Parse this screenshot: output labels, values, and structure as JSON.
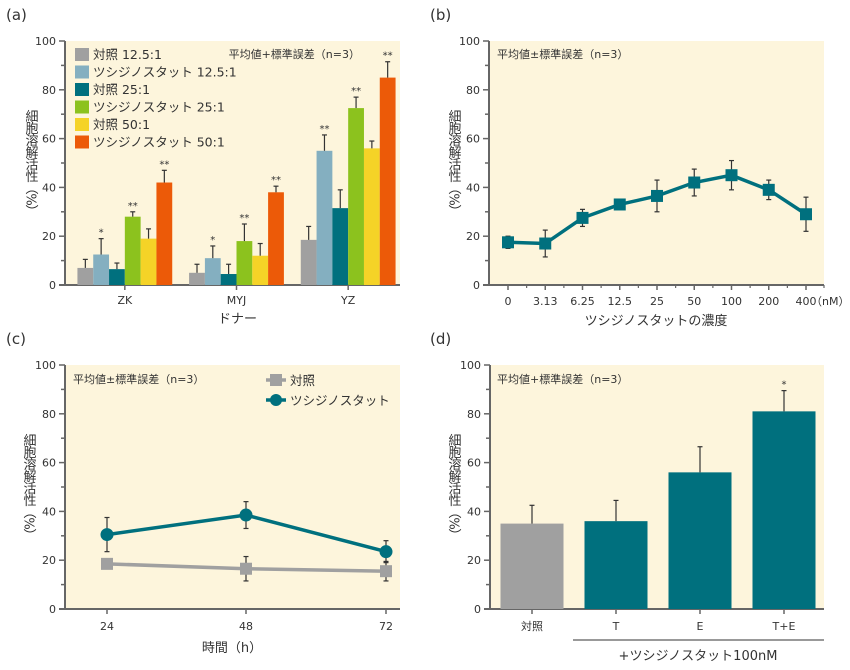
{
  "colors": {
    "plot_bg": "#fdf5dc",
    "axis": "#666666",
    "gray": "#a0a0a0",
    "light_blue": "#84afc0",
    "teal": "#00707e",
    "green": "#8cc21e",
    "yellow": "#f5d327",
    "orange": "#ec5a08",
    "error_bar": "#333333"
  },
  "chart_data": [
    {
      "id": "a",
      "panel_label": "(a)",
      "type": "bar",
      "title": "",
      "note": "平均値+標準誤差（n=3）",
      "xlabel": "ドナー",
      "ylabel": "細胞溶解活性（%）",
      "ylim": [
        0,
        100
      ],
      "yticks": [
        0,
        20,
        40,
        60,
        80,
        100
      ],
      "ytick_labels": [
        "0",
        "20",
        "40",
        "60",
        "80",
        "100"
      ],
      "categories": [
        "ZK",
        "MYJ",
        "YZ"
      ],
      "legend_position": "top-left",
      "series": [
        {
          "name": "対照 12.5:1",
          "color_key": "gray",
          "values": [
            7,
            5,
            18.5
          ],
          "errors": [
            3.5,
            3.5,
            5.5
          ],
          "sig": [
            "",
            "",
            ""
          ]
        },
        {
          "name": "ツシジノスタット 12.5:1",
          "color_key": "light_blue",
          "values": [
            12.5,
            11,
            55
          ],
          "errors": [
            6.5,
            5,
            6.5
          ],
          "sig": [
            "*",
            "*",
            "**"
          ]
        },
        {
          "name": "対照 25:1",
          "color_key": "teal",
          "values": [
            6.5,
            4.5,
            31.5
          ],
          "errors": [
            2.5,
            4,
            7.5
          ],
          "sig": [
            "",
            "",
            ""
          ]
        },
        {
          "name": "ツシジノスタット 25:1",
          "color_key": "green",
          "values": [
            28,
            18,
            72.5
          ],
          "errors": [
            2,
            7,
            4.5
          ],
          "sig": [
            "**",
            "**",
            "**"
          ]
        },
        {
          "name": "対照 50:1",
          "color_key": "yellow",
          "values": [
            19,
            12,
            56
          ],
          "errors": [
            4,
            5,
            3
          ],
          "sig": [
            "",
            "",
            ""
          ]
        },
        {
          "name": "ツシジノスタット 50:1",
          "color_key": "orange",
          "values": [
            42,
            38,
            85
          ],
          "errors": [
            5,
            2.5,
            6.5
          ],
          "sig": [
            "**",
            "**",
            "**"
          ]
        }
      ]
    },
    {
      "id": "b",
      "panel_label": "(b)",
      "type": "line",
      "title": "",
      "note": "平均値±標準誤差（n=3）",
      "xlabel": "ツシジノスタットの濃度",
      "x_unit": "（nM）",
      "ylabel": "細胞溶解活性（%）",
      "ylim": [
        0,
        100
      ],
      "yticks": [
        0,
        20,
        40,
        60,
        80,
        100
      ],
      "ytick_labels": [
        "0",
        "20",
        "40",
        "60",
        "80",
        "100"
      ],
      "categories": [
        "0",
        "3.13",
        "6.25",
        "12.5",
        "25",
        "50",
        "100",
        "200",
        "400"
      ],
      "series": [
        {
          "name": "ツシジノスタット",
          "color_key": "teal",
          "marker": "square",
          "values": [
            17.5,
            17,
            27.5,
            33,
            36.5,
            42,
            45,
            39,
            29
          ],
          "errors": [
            2.5,
            5.5,
            3.5,
            1,
            6.5,
            5.5,
            6,
            4,
            7
          ]
        }
      ]
    },
    {
      "id": "c",
      "panel_label": "(c)",
      "type": "line",
      "title": "",
      "note": "平均値±標準誤差（n=3）",
      "xlabel": "時間（h）",
      "ylabel": "細胞溶解活性（%）",
      "ylim": [
        0,
        100
      ],
      "yticks": [
        0,
        20,
        40,
        60,
        80,
        100
      ],
      "ytick_labels": [
        "0",
        "20",
        "40",
        "60",
        "80",
        "100"
      ],
      "categories": [
        "24",
        "48",
        "72"
      ],
      "legend_position": "top-right",
      "series": [
        {
          "name": "対照",
          "color_key": "gray",
          "marker": "square",
          "values": [
            18.5,
            16.5,
            15.5
          ],
          "errors": [
            0,
            5,
            4
          ]
        },
        {
          "name": "ツシジノスタット",
          "color_key": "teal",
          "marker": "circle",
          "values": [
            30.5,
            38.5,
            23.5
          ],
          "errors": [
            7,
            5.5,
            4.5
          ]
        }
      ]
    },
    {
      "id": "d",
      "panel_label": "(d)",
      "type": "bar",
      "title": "",
      "note": "平均値+標準誤差（n=3）",
      "xlabel": "+ツシジノスタット100nM",
      "ylabel": "細胞溶解活性（%）",
      "ylim": [
        0,
        100
      ],
      "yticks": [
        0,
        20,
        40,
        60,
        80,
        100
      ],
      "ytick_labels": [
        "0",
        "20",
        "40",
        "60",
        "80",
        "100"
      ],
      "categories": [
        "対照",
        "T",
        "E",
        "T+E"
      ],
      "bracket_categories": [
        "T",
        "E",
        "T+E"
      ],
      "series": [
        {
          "name": "細胞溶解活性",
          "values": [
            35,
            36,
            56,
            81
          ],
          "errors": [
            7.5,
            8.5,
            10.5,
            8.5
          ],
          "color_keys": [
            "gray",
            "teal",
            "teal",
            "teal"
          ],
          "sig": [
            "",
            "",
            "",
            "*"
          ]
        }
      ]
    }
  ]
}
